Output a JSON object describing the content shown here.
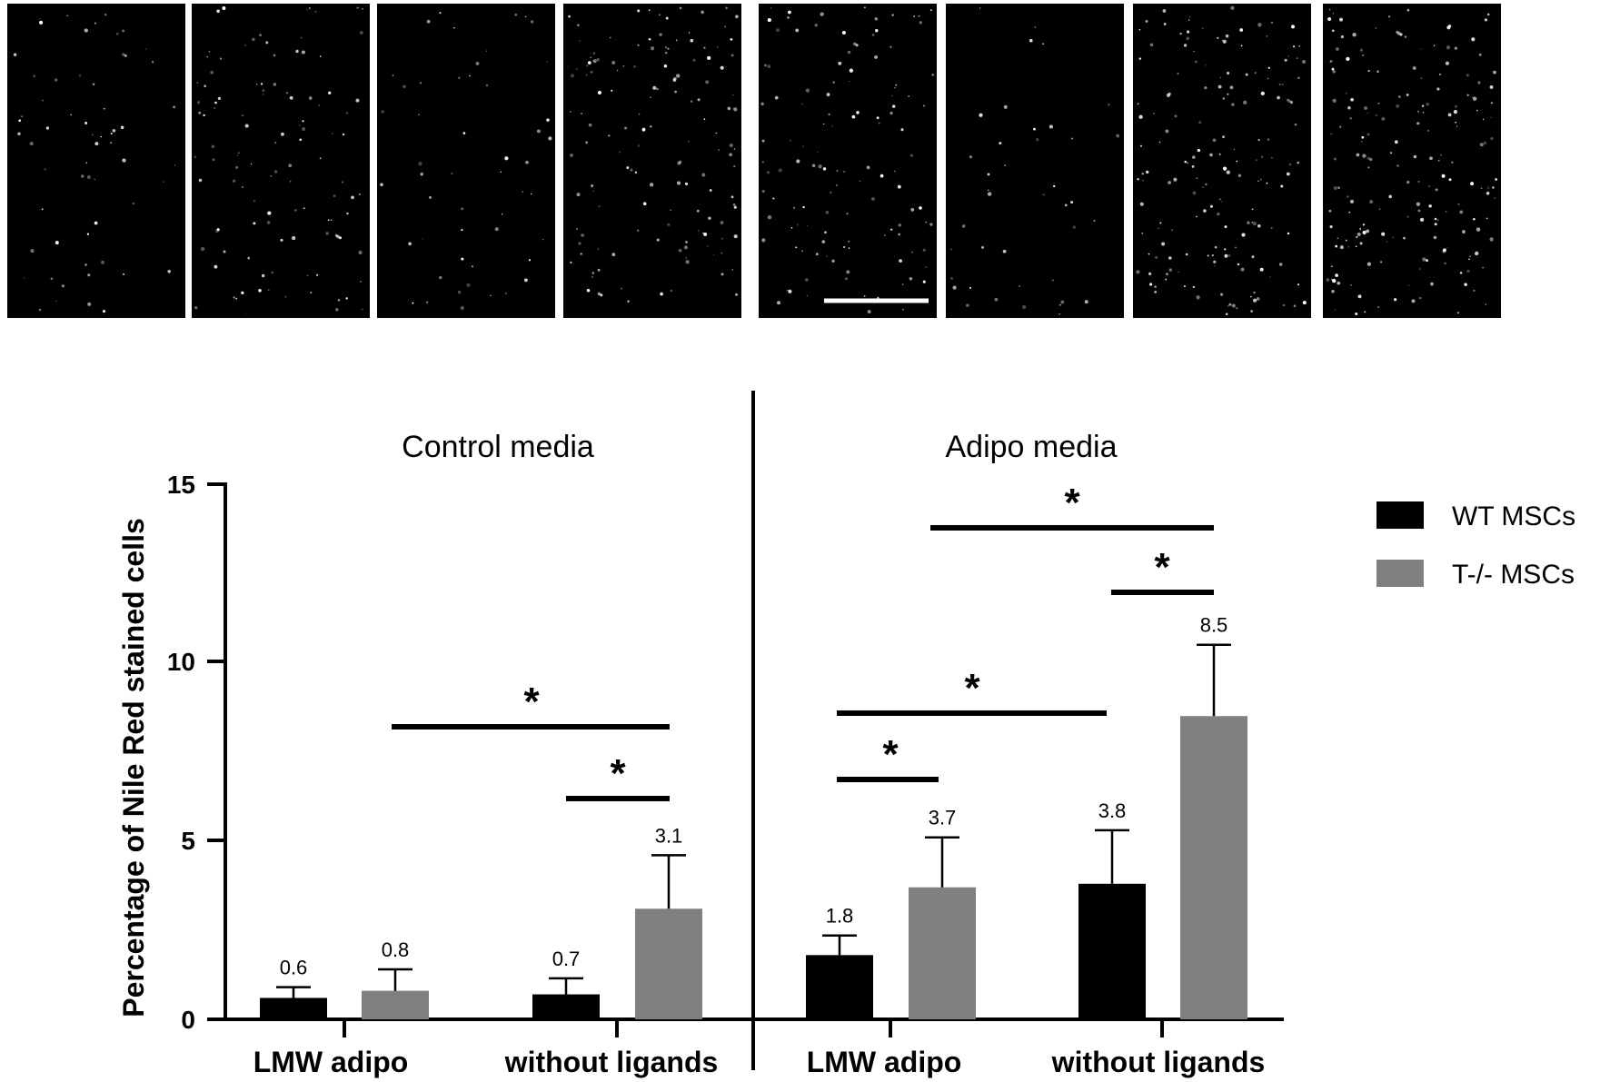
{
  "chart_data": {
    "type": "bar",
    "ylabel": "Percentage of Nile Red stained cells",
    "ylim": [
      0,
      15
    ],
    "yticks": [
      "0",
      "5",
      "10",
      "15"
    ],
    "groups": [
      {
        "title": "Control media",
        "categories": [
          "LMW adipo",
          "without ligands"
        ],
        "series": [
          {
            "name": "WT MSCs",
            "color": "#000000",
            "values": [
              0.6,
              0.7
            ],
            "errors": [
              0.3,
              0.45
            ],
            "labels": [
              "0.6",
              "0.7"
            ]
          },
          {
            "name": "T-/- MSCs",
            "color": "#808080",
            "values": [
              0.8,
              3.1
            ],
            "errors": [
              0.6,
              1.5
            ],
            "labels": [
              "0.8",
              "3.1"
            ]
          }
        ],
        "significance": [
          {
            "label": "*",
            "y": 8.3
          },
          {
            "label": "*",
            "y": 6.2
          }
        ]
      },
      {
        "title": "Adipo media",
        "categories": [
          "LMW adipo",
          "without ligands"
        ],
        "series": [
          {
            "name": "WT MSCs",
            "color": "#000000",
            "values": [
              1.8,
              3.8
            ],
            "errors": [
              0.55,
              1.5
            ],
            "labels": [
              "1.8",
              "3.8"
            ]
          },
          {
            "name": "T-/- MSCs",
            "color": "#808080",
            "values": [
              3.7,
              8.5
            ],
            "errors": [
              1.4,
              2.0
            ],
            "labels": [
              "3.7",
              "8.5"
            ]
          }
        ],
        "significance": [
          {
            "label": "*",
            "y": 13.8
          },
          {
            "label": "*",
            "y": 12.1
          },
          {
            "label": "*",
            "y": 8.6
          },
          {
            "label": "*",
            "y": 6.7
          }
        ]
      }
    ],
    "legend": {
      "position": "right",
      "items": [
        {
          "name": "WT MSCs",
          "color": "#000000"
        },
        {
          "name": "T-/- MSCs",
          "color": "#808080"
        }
      ]
    },
    "micrograph_panels": 8,
    "grid": false
  }
}
